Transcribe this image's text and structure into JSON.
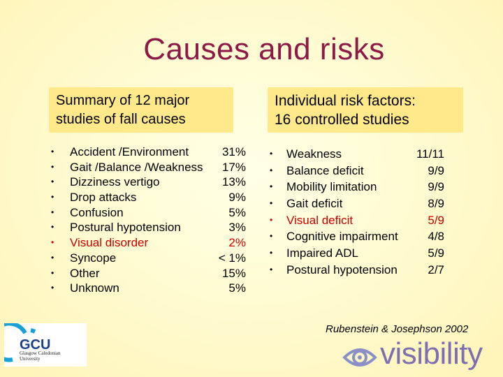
{
  "title": "Causes and risks",
  "left_box": {
    "line1": "Summary of 12 major",
    "line2": "studies of fall causes"
  },
  "right_box": {
    "line1": "Individual risk factors:",
    "line2": "16 controlled studies"
  },
  "causes": [
    {
      "label": "Accident /Environment",
      "value": "31%"
    },
    {
      "label": "Gait /Balance /Weakness",
      "value": "17%"
    },
    {
      "label": "Dizziness vertigo",
      "value": "13%"
    },
    {
      "label": "Drop attacks",
      "value": "9%"
    },
    {
      "label": "Confusion",
      "value": "5%"
    },
    {
      "label": "Postural hypotension",
      "value": "3%"
    },
    {
      "label": "Visual disorder",
      "value": "2%"
    },
    {
      "label": "Syncope",
      "value": "< 1%"
    },
    {
      "label": "Other",
      "value": "15%"
    },
    {
      "label": "Unknown",
      "value": "5%"
    }
  ],
  "risk_factors": [
    {
      "label": "Weakness",
      "value": "11/11"
    },
    {
      "label": "Balance deficit",
      "value": "9/9"
    },
    {
      "label": "Mobility limitation",
      "value": "9/9"
    },
    {
      "label": "Gait deficit",
      "value": "8/9"
    },
    {
      "label": "Visual deficit",
      "value": "5/9"
    },
    {
      "label": "Cognitive impairment",
      "value": "4/8"
    },
    {
      "label": "Impaired ADL",
      "value": "5/9"
    },
    {
      "label": "Postural hypotension",
      "value": "2/7"
    }
  ],
  "bullet": "•",
  "citation": "Rubenstein & Josephson 2002",
  "gcu_logo": {
    "letters": "GCU",
    "line1": "Glasgow Caledonian",
    "line2": "University"
  },
  "visibility_logo": {
    "text": "visibility"
  },
  "colors": {
    "title": "#8b1a46",
    "highlight": "#cc0000",
    "box": "#ffe98a",
    "visibility": "#7d6fb0",
    "gcu": "#1c3f87"
  }
}
